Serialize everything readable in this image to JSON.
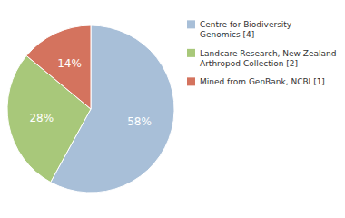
{
  "chart_data": {
    "type": "pie",
    "categories": [
      "Centre for Biodiversity\nGenomics [4]",
      "Landcare Research, New Zealand\nArthropod Collection [2]",
      "Mined from GenBank, NCBI [1]"
    ],
    "values": [
      58,
      28,
      14
    ],
    "value_labels": [
      "58%",
      "28%",
      "14%"
    ],
    "colors": [
      "#a8bfd8",
      "#a8c87a",
      "#d4735e"
    ],
    "data_labels": true,
    "legend": "right"
  }
}
